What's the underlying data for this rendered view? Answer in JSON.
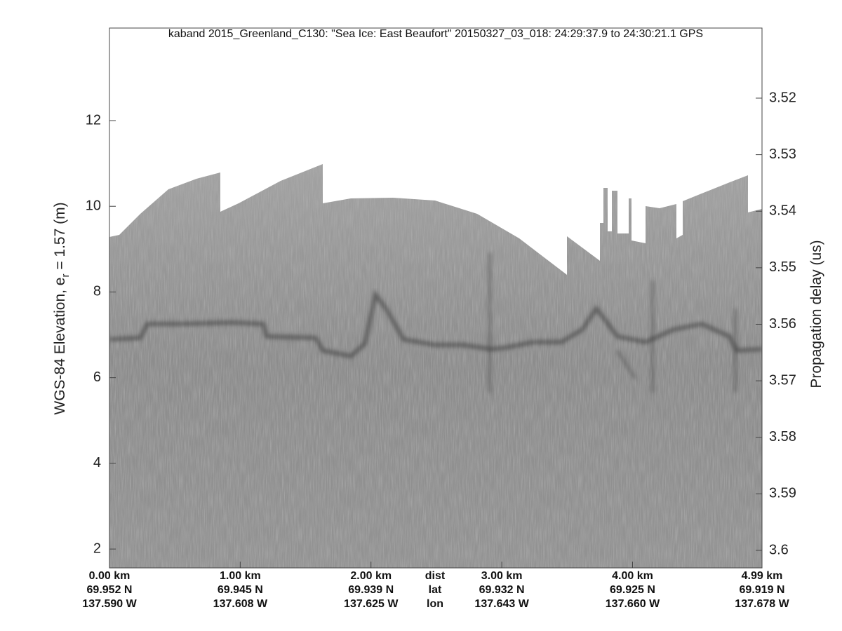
{
  "chart_data": {
    "type": "echogram",
    "title": "kaband 2015_Greenland_C130: \"Sea Ice: East Beaufort\"  20150327_03_018: 24:29:37.9 to 24:30:21.1 GPS",
    "ylabel": [
      "WGS-84 Elevation, e",
      "r",
      " = 1.57 (m)"
    ],
    "y2label": "Propagation delay (us)",
    "xlim": [
      0,
      4.99
    ],
    "xticks": [
      {
        "value": 0,
        "label": "0.00 km"
      },
      {
        "value": 1,
        "label": "1.00 km"
      },
      {
        "value": 2,
        "label": "2.00 km"
      },
      {
        "value": 3,
        "label": "3.00 km"
      },
      {
        "value": 4,
        "label": "4.00 km"
      },
      {
        "value": 4.99,
        "label": "4.99 km"
      }
    ],
    "lat_labels": [
      "69.952 N",
      "69.945 N",
      "69.939 N",
      "69.932 N",
      "69.925 N",
      "69.919 N"
    ],
    "lon_labels": [
      "137.590 W",
      "137.608 W",
      "137.625 W",
      "137.643 W",
      "137.660 W",
      "137.678 W"
    ],
    "row_labels": [
      "dist",
      "lat",
      "lon"
    ],
    "ylim": [
      1.56,
      14.16
    ],
    "yticks": [
      2,
      4,
      6,
      8,
      10,
      12
    ],
    "y2lim": [
      3.5076,
      3.6031
    ],
    "y2ticks": [
      3.52,
      3.53,
      3.54,
      3.55,
      3.56,
      3.57,
      3.58,
      3.59,
      3.6
    ]
  }
}
